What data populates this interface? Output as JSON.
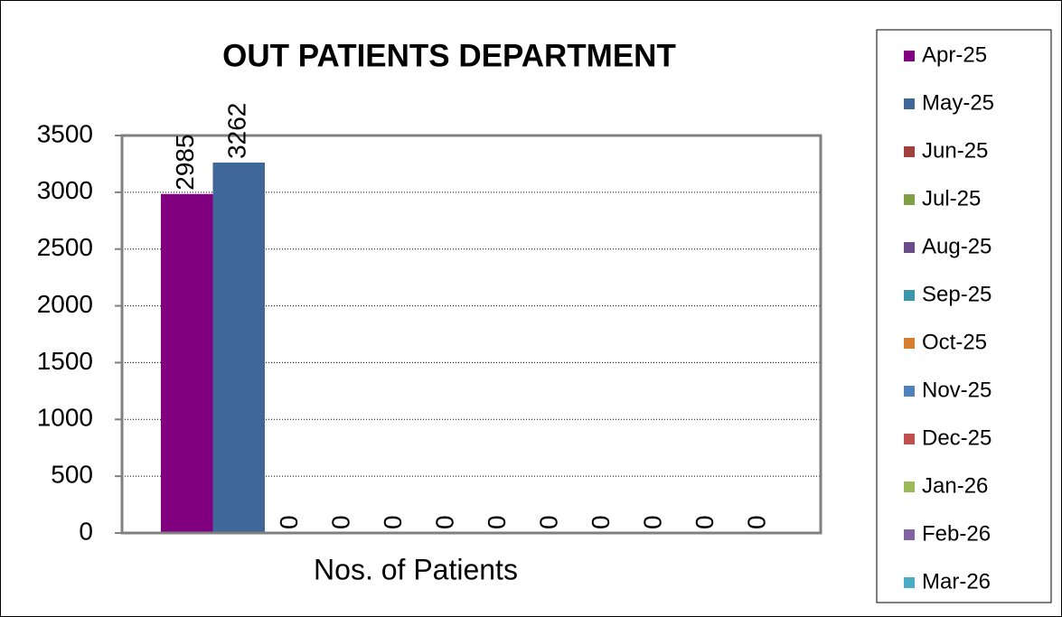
{
  "chart_data": {
    "type": "bar",
    "title": "OUT PATIENTS DEPARTMENT",
    "categories": [
      "Nos. of Patients"
    ],
    "series": [
      {
        "name": "Apr-25",
        "color": "#800080",
        "values": [
          2985
        ]
      },
      {
        "name": "May-25",
        "color": "#3f6797",
        "values": [
          3262
        ]
      },
      {
        "name": "Jun-25",
        "color": "#a0413d",
        "values": [
          0
        ]
      },
      {
        "name": "Jul-25",
        "color": "#7fa045",
        "values": [
          0
        ]
      },
      {
        "name": "Aug-25",
        "color": "#6b4c8a",
        "values": [
          0
        ]
      },
      {
        "name": "Sep-25",
        "color": "#3b97ab",
        "values": [
          0
        ]
      },
      {
        "name": "Oct-25",
        "color": "#d6802f",
        "values": [
          0
        ]
      },
      {
        "name": "Nov-25",
        "color": "#4f81bd",
        "values": [
          0
        ]
      },
      {
        "name": "Dec-25",
        "color": "#c0504d",
        "values": [
          0
        ]
      },
      {
        "name": "Jan-26",
        "color": "#9bbb59",
        "values": [
          0
        ]
      },
      {
        "name": "Feb-26",
        "color": "#8064a2",
        "values": [
          0
        ]
      },
      {
        "name": "Mar-26",
        "color": "#4bacc6",
        "values": [
          0
        ]
      }
    ],
    "ylim": [
      0,
      3500
    ],
    "yticks": [
      0,
      500,
      1000,
      1500,
      2000,
      2500,
      3000,
      3500
    ],
    "grid": true,
    "legend": "right"
  }
}
